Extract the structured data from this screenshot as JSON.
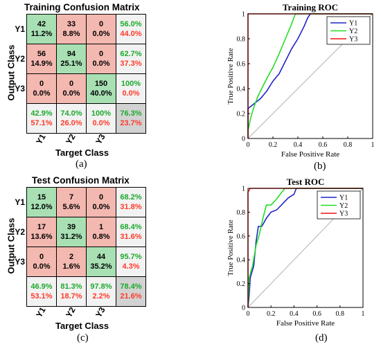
{
  "chart_data": [
    {
      "type": "heatmap",
      "title": "Training Confusion Matrix",
      "xlabel": "Target Class",
      "ylabel": "Output Class",
      "row_labels": [
        "Y1",
        "Y2",
        "Y3"
      ],
      "col_labels": [
        "Y1",
        "Y2",
        "Y3"
      ],
      "counts": [
        [
          42,
          33,
          0
        ],
        [
          56,
          94,
          0
        ],
        [
          0,
          0,
          150
        ]
      ],
      "cell_percent": [
        [
          "11.2%",
          "8.8%",
          "0.0%"
        ],
        [
          "14.9%",
          "25.1%",
          "0.0%"
        ],
        [
          "0.0%",
          "0.0%",
          "40.0%"
        ]
      ],
      "row_summary": [
        [
          "56.0%",
          "44.0%"
        ],
        [
          "62.7%",
          "37.3%"
        ],
        [
          "100%",
          "0.0%"
        ]
      ],
      "col_summary": [
        [
          "42.9%",
          "57.1%"
        ],
        [
          "74.0%",
          "26.0%"
        ],
        [
          "100%",
          "0.0%"
        ]
      ],
      "overall": [
        "76.3%",
        "23.7%"
      ]
    },
    {
      "type": "line",
      "title": "Training  ROC",
      "xlabel": "False Positive Rate",
      "ylabel": "True Positive Rate",
      "xlim": [
        0,
        1
      ],
      "ylim": [
        0,
        1
      ],
      "xticks": [
        "0",
        "0.2",
        "0.4",
        "0.6",
        "0.8",
        "1"
      ],
      "yticks": [
        "0",
        "0.2",
        "0.4",
        "0.6",
        "0.8",
        "1"
      ],
      "legend_position": "top-right",
      "diagonal": [
        [
          0,
          0
        ],
        [
          1,
          1
        ]
      ],
      "series": [
        {
          "name": "Y1",
          "color": "#1f24c8",
          "points": [
            [
              0,
              0
            ],
            [
              0,
              0.24
            ],
            [
              0.05,
              0.28
            ],
            [
              0.1,
              0.32
            ],
            [
              0.15,
              0.38
            ],
            [
              0.2,
              0.46
            ],
            [
              0.25,
              0.52
            ],
            [
              0.3,
              0.62
            ],
            [
              0.35,
              0.72
            ],
            [
              0.4,
              0.8
            ],
            [
              0.45,
              0.9
            ],
            [
              0.48,
              0.97
            ],
            [
              0.5,
              1
            ],
            [
              1,
              1
            ]
          ]
        },
        {
          "name": "Y2",
          "color": "#22dd22",
          "points": [
            [
              0,
              0
            ],
            [
              0,
              0.06
            ],
            [
              0.02,
              0.16
            ],
            [
              0.05,
              0.26
            ],
            [
              0.08,
              0.34
            ],
            [
              0.12,
              0.42
            ],
            [
              0.15,
              0.48
            ],
            [
              0.2,
              0.57
            ],
            [
              0.25,
              0.68
            ],
            [
              0.3,
              0.8
            ],
            [
              0.35,
              0.92
            ],
            [
              0.38,
              1
            ],
            [
              1,
              1
            ]
          ]
        },
        {
          "name": "Y3",
          "color": "#ee1111",
          "points": [
            [
              0,
              0
            ],
            [
              0,
              1
            ],
            [
              1,
              1
            ]
          ]
        }
      ]
    },
    {
      "type": "heatmap",
      "title": "Test Confusion Matrix",
      "xlabel": "Target Class",
      "ylabel": "Output Class",
      "row_labels": [
        "Y1",
        "Y2",
        "Y3"
      ],
      "col_labels": [
        "Y1",
        "Y2",
        "Y3"
      ],
      "counts": [
        [
          15,
          7,
          0
        ],
        [
          17,
          39,
          1
        ],
        [
          0,
          2,
          44
        ]
      ],
      "cell_percent": [
        [
          "12.0%",
          "5.6%",
          "0.0%"
        ],
        [
          "13.6%",
          "31.2%",
          "0.8%"
        ],
        [
          "0.0%",
          "1.6%",
          "35.2%"
        ]
      ],
      "row_summary": [
        [
          "68.2%",
          "31.8%"
        ],
        [
          "68.4%",
          "31.6%"
        ],
        [
          "95.7%",
          "4.3%"
        ]
      ],
      "col_summary": [
        [
          "46.9%",
          "53.1%"
        ],
        [
          "81.3%",
          "18.7%"
        ],
        [
          "97.8%",
          "2.2%"
        ]
      ],
      "overall": [
        "78.4%",
        "21.6%"
      ]
    },
    {
      "type": "line",
      "title": "Test ROC",
      "xlabel": "False Positive Rate",
      "ylabel": "True Positive Rate",
      "xlim": [
        0,
        1
      ],
      "ylim": [
        0,
        1
      ],
      "xticks": [
        "0",
        "0.2",
        "0.4",
        "0.6",
        "0.8",
        "1"
      ],
      "yticks": [
        "0",
        "0.2",
        "0.4",
        "0.6",
        "0.8",
        "1"
      ],
      "legend_position": "top-right",
      "diagonal": [
        [
          0,
          0
        ],
        [
          1,
          1
        ]
      ],
      "series": [
        {
          "name": "Y1",
          "color": "#1f24c8",
          "points": [
            [
              0,
              0
            ],
            [
              0.01,
              0.1
            ],
            [
              0.02,
              0.25
            ],
            [
              0.05,
              0.35
            ],
            [
              0.07,
              0.55
            ],
            [
              0.09,
              0.68
            ],
            [
              0.12,
              0.68
            ],
            [
              0.16,
              0.75
            ],
            [
              0.2,
              0.8
            ],
            [
              0.25,
              0.82
            ],
            [
              0.3,
              0.87
            ],
            [
              0.35,
              0.92
            ],
            [
              0.4,
              0.95
            ],
            [
              0.42,
              1
            ],
            [
              1,
              1
            ]
          ]
        },
        {
          "name": "Y2",
          "color": "#22dd22",
          "points": [
            [
              0,
              0
            ],
            [
              0.01,
              0.25
            ],
            [
              0.04,
              0.35
            ],
            [
              0.07,
              0.52
            ],
            [
              0.1,
              0.62
            ],
            [
              0.13,
              0.75
            ],
            [
              0.16,
              0.86
            ],
            [
              0.2,
              0.86
            ],
            [
              0.24,
              0.9
            ],
            [
              0.28,
              0.95
            ],
            [
              0.32,
              1
            ],
            [
              1,
              1
            ]
          ]
        },
        {
          "name": "Y3",
          "color": "#ee1111",
          "points": [
            [
              0,
              0
            ],
            [
              0,
              0.97
            ],
            [
              0.02,
              1
            ],
            [
              1,
              1
            ]
          ]
        }
      ]
    }
  ],
  "captions": [
    "(a)",
    "(b)",
    "(c)",
    "(d)"
  ]
}
